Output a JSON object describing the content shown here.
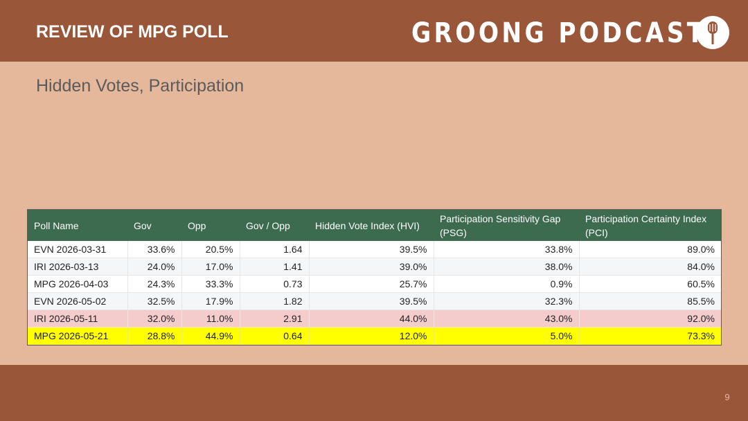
{
  "header": {
    "title": "REVIEW OF MPG POLL",
    "logo_text": "GROONG PODCAST",
    "logo_icon": "microphone-icon"
  },
  "subtitle": "Hidden Votes, Participation",
  "table": {
    "columns": [
      "Poll Name",
      "Gov",
      "Opp",
      "Gov / Opp",
      "Hidden Vote Index (HVI)",
      "Participation Sensitivity Gap (PSG)",
      "Participation Certainty Index (PCI)"
    ],
    "rows": [
      [
        "EVN 2026-03-31",
        "33.6%",
        "20.5%",
        "1.64",
        "39.5%",
        "33.8%",
        "89.0%"
      ],
      [
        "IRI 2026-03-13",
        "24.0%",
        "17.0%",
        "1.41",
        "39.0%",
        "38.0%",
        "84.0%"
      ],
      [
        "MPG 2026-04-03",
        "24.3%",
        "33.3%",
        "0.73",
        "25.7%",
        "0.9%",
        "60.5%"
      ],
      [
        "EVN 2026-05-02",
        "32.5%",
        "17.9%",
        "1.82",
        "39.5%",
        "32.3%",
        "85.5%"
      ],
      [
        "IRI 2026-05-11",
        "32.0%",
        "11.0%",
        "2.91",
        "44.0%",
        "43.0%",
        "92.0%"
      ],
      [
        "MPG 2026-05-21",
        "28.8%",
        "44.9%",
        "0.64",
        "12.0%",
        "5.0%",
        "73.3%"
      ]
    ],
    "highlight_colors": {
      "iri_2026_05_11": "#f4cccc",
      "mpg_2026_05_21": "#ffff00"
    },
    "header_color": "#3d6b4f"
  },
  "footer": {
    "page_number": "9"
  },
  "colors": {
    "bar": "#995638",
    "background": "#e5b89c"
  }
}
